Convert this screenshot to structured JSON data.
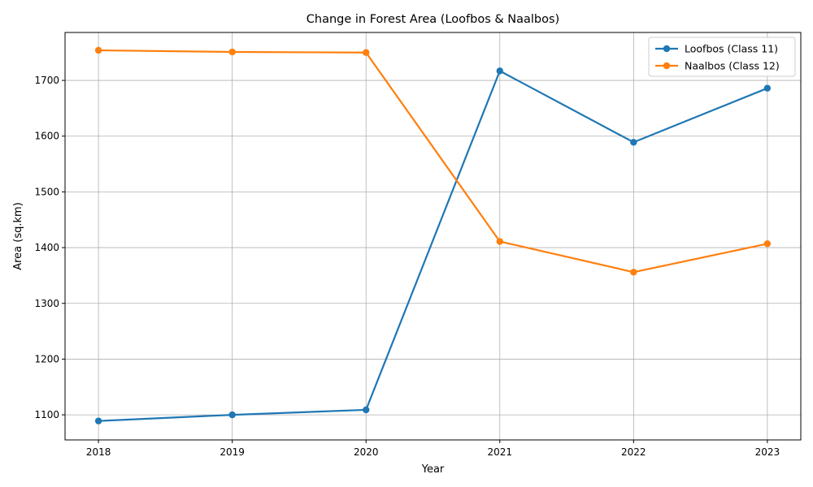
{
  "chart_data": {
    "type": "line",
    "title": "Change in Forest Area (Loofbos & Naalbos)",
    "xlabel": "Year",
    "ylabel": "Area (sq.km)",
    "x": [
      2018,
      2019,
      2020,
      2021,
      2022,
      2023
    ],
    "xlim": [
      2017.75,
      2023.25
    ],
    "ylim": [
      1055,
      1786
    ],
    "yticks": [
      1100,
      1200,
      1300,
      1400,
      1500,
      1600,
      1700
    ],
    "grid": true,
    "legend_position": "top-right",
    "series": [
      {
        "name": "Loofbos (Class 11)",
        "color": "#1f77b4",
        "marker": "circle",
        "values": [
          1089,
          1100,
          1109,
          1717,
          1589,
          1686
        ]
      },
      {
        "name": "Naalbos (Class 12)",
        "color": "#ff7f0e",
        "marker": "circle",
        "values": [
          1754,
          1751,
          1750,
          1411,
          1356,
          1407
        ]
      }
    ]
  }
}
